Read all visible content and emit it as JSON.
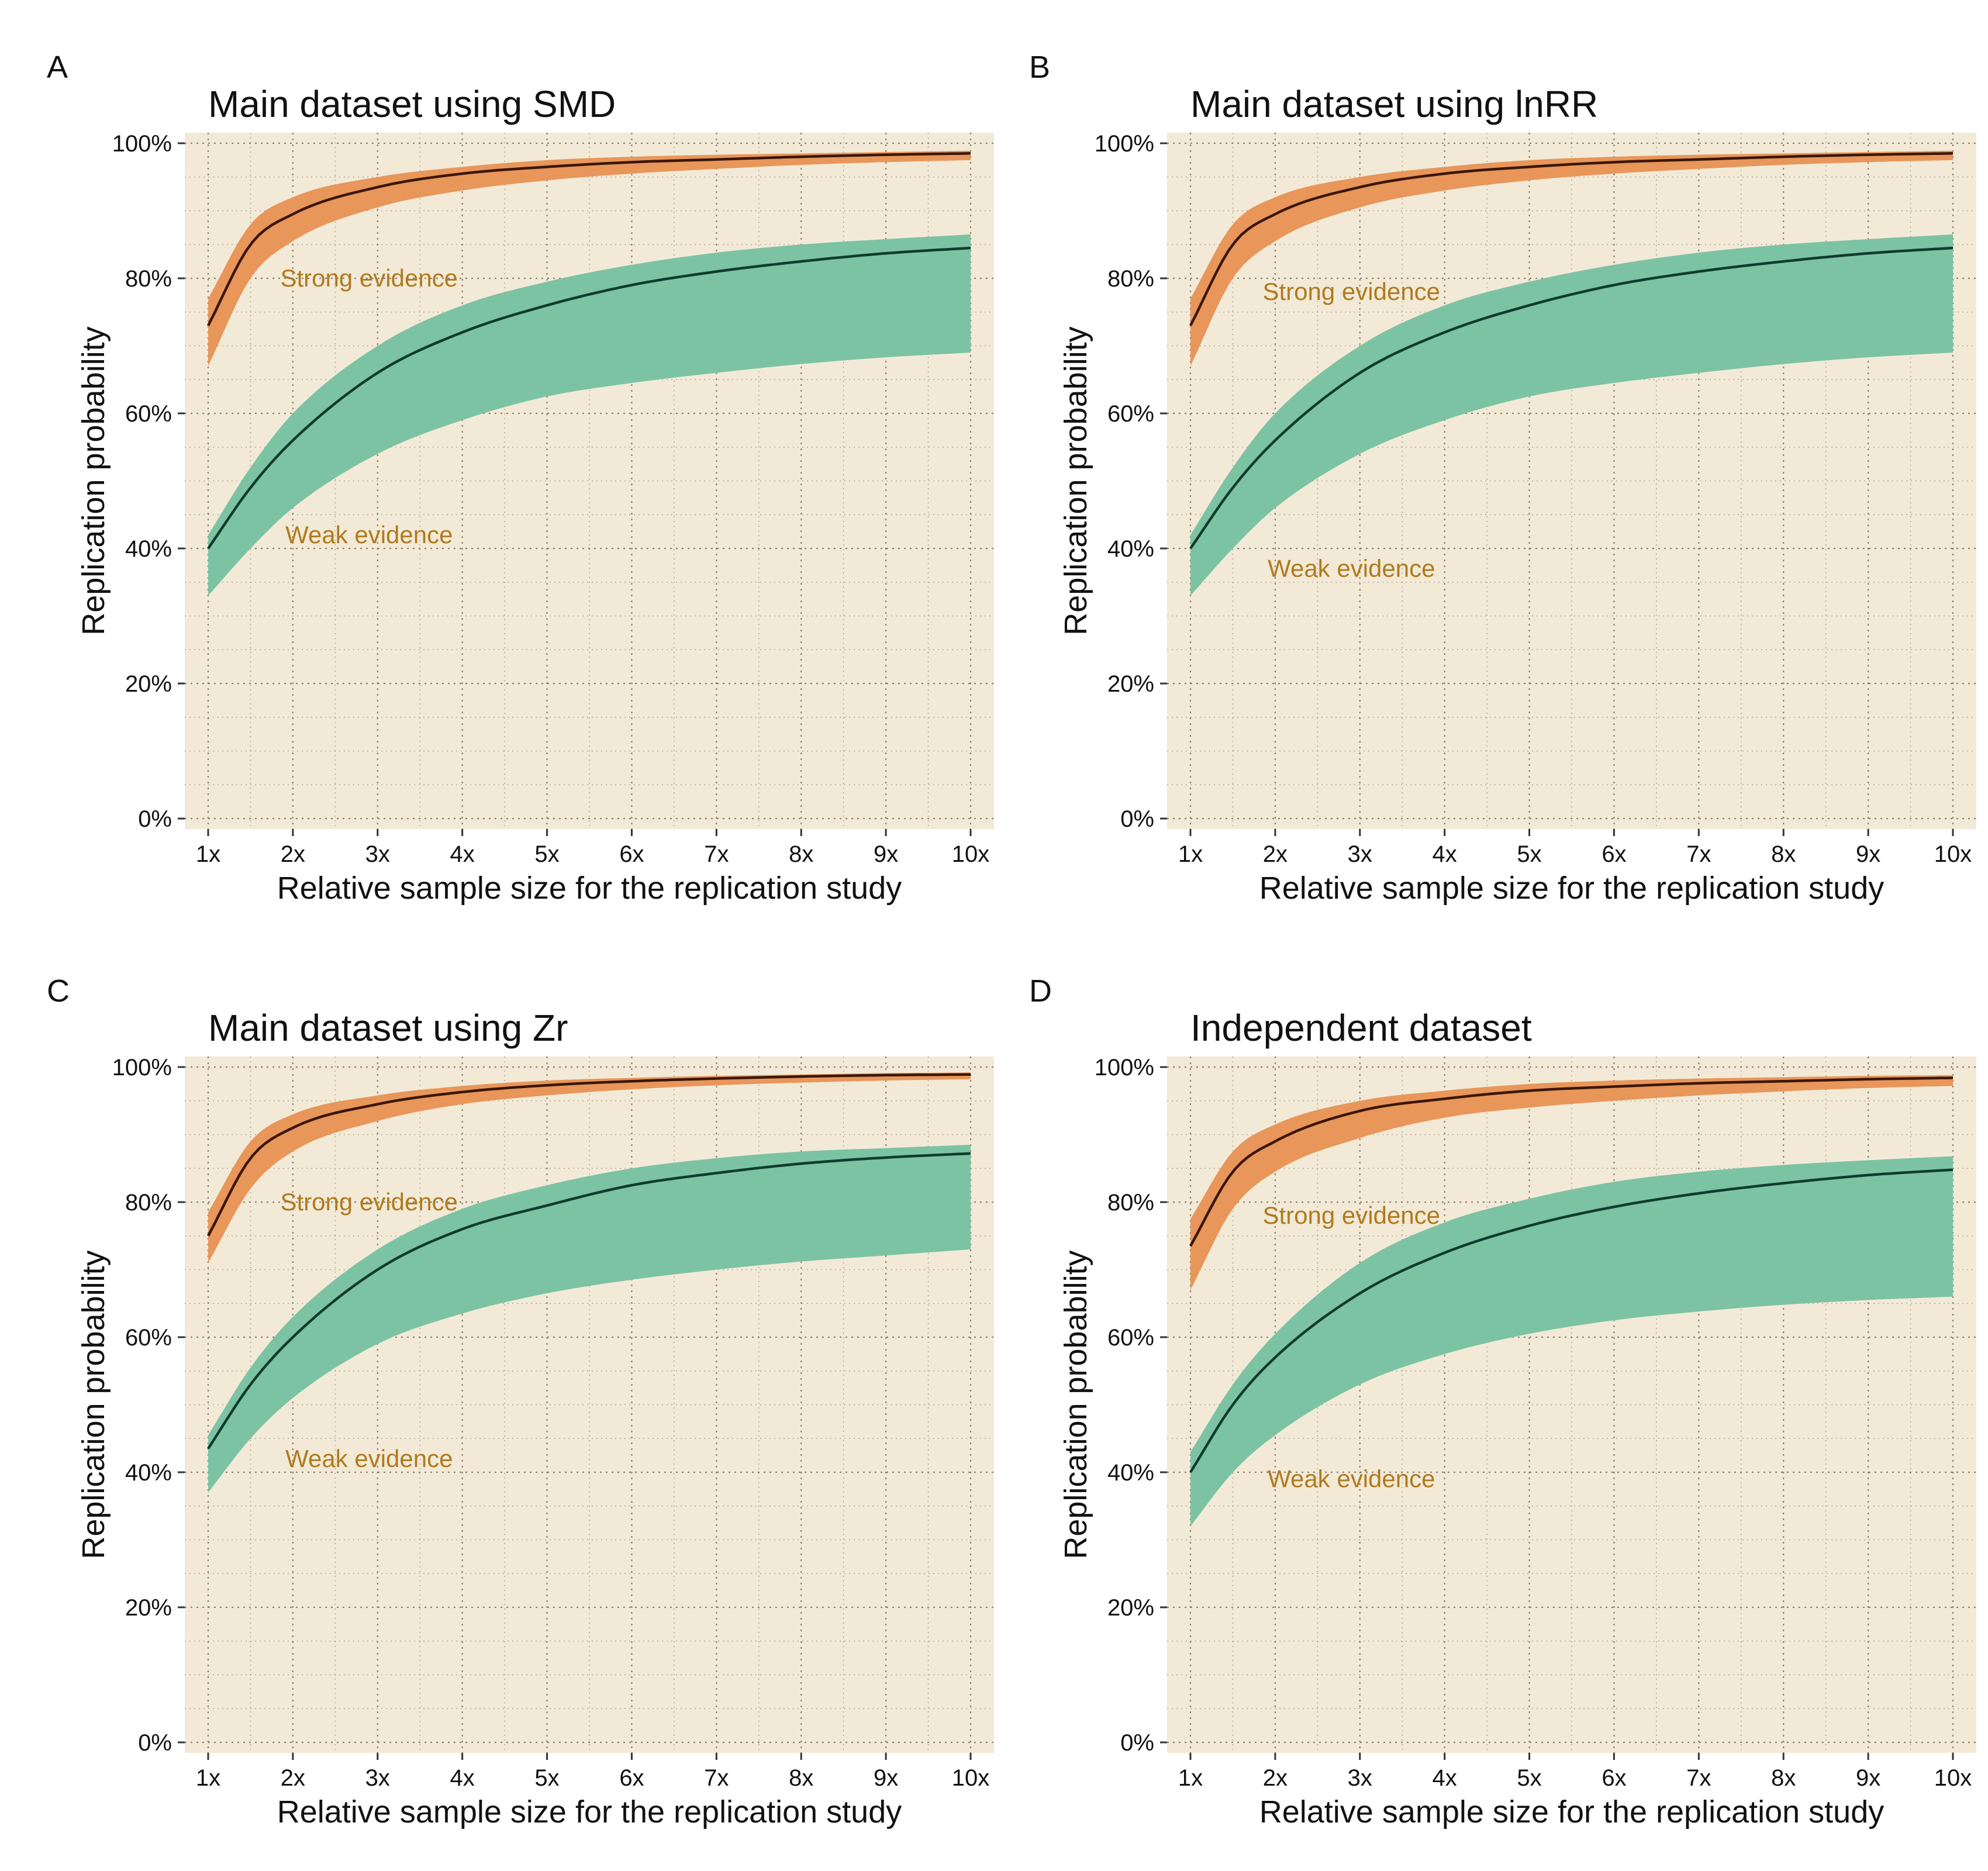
{
  "colors": {
    "panel_background": "#F2EAD7",
    "grid": "#7a7060",
    "strong_band": "#E8965A",
    "strong_line": "#3a1608",
    "weak_band": "#7CC3A3",
    "weak_line": "#0f3b2c",
    "annotation": "#B07A1E"
  },
  "chart_data": [
    {
      "type": "area",
      "letter": "A",
      "title": "Main dataset using SMD",
      "xlabel": "Relative sample size for the replication study",
      "ylabel": "Replication probability",
      "xlim": [
        1,
        10
      ],
      "ylim": [
        0,
        100
      ],
      "x_ticks": [
        "1x",
        "2x",
        "3x",
        "4x",
        "5x",
        "6x",
        "7x",
        "8x",
        "9x",
        "10x"
      ],
      "y_ticks": [
        "0%",
        "20%",
        "40%",
        "60%",
        "80%",
        "100%"
      ],
      "grid": "dotted",
      "annotations": [
        {
          "text": "Strong evidence",
          "x": 2.9,
          "y": 80
        },
        {
          "text": "Weak evidence",
          "x": 2.9,
          "y": 42
        }
      ],
      "series": [
        {
          "name": "Strong evidence",
          "x": [
            1,
            1.5,
            2,
            3,
            4,
            5,
            6,
            7,
            8,
            9,
            10
          ],
          "mean": [
            73,
            85,
            89.5,
            93.5,
            95.5,
            96.5,
            97.2,
            97.6,
            98,
            98.3,
            98.5
          ],
          "lower": [
            67,
            80,
            85.5,
            90.5,
            93,
            94.5,
            95.5,
            96.2,
            96.8,
            97.2,
            97.5
          ],
          "upper": [
            77,
            88,
            92,
            95,
            96.5,
            97.5,
            98,
            98.3,
            98.5,
            98.7,
            98.9
          ]
        },
        {
          "name": "Weak evidence",
          "x": [
            1,
            1.5,
            2,
            3,
            4,
            5,
            6,
            7,
            8,
            9,
            10
          ],
          "mean": [
            40,
            49,
            56,
            66,
            72,
            76,
            79,
            81,
            82.5,
            83.7,
            84.5
          ],
          "lower": [
            33,
            40,
            46,
            54,
            59,
            62.5,
            64.5,
            66,
            67.3,
            68.3,
            69
          ],
          "upper": [
            42,
            52,
            60,
            70,
            76,
            79.5,
            82,
            83.8,
            85,
            85.8,
            86.5
          ]
        }
      ]
    },
    {
      "type": "area",
      "letter": "B",
      "title": "Main dataset using lnRR",
      "xlabel": "Relative sample size for the replication study",
      "ylabel": "Replication probability",
      "xlim": [
        1,
        10
      ],
      "ylim": [
        0,
        100
      ],
      "x_ticks": [
        "1x",
        "2x",
        "3x",
        "4x",
        "5x",
        "6x",
        "7x",
        "8x",
        "9x",
        "10x"
      ],
      "y_ticks": [
        "0%",
        "20%",
        "40%",
        "60%",
        "80%",
        "100%"
      ],
      "grid": "dotted",
      "annotations": [
        {
          "text": "Strong evidence",
          "x": 2.9,
          "y": 78
        },
        {
          "text": "Weak evidence",
          "x": 2.9,
          "y": 37
        }
      ],
      "series": [
        {
          "name": "Strong evidence",
          "x": [
            1,
            1.5,
            2,
            3,
            4,
            5,
            6,
            7,
            8,
            9,
            10
          ],
          "mean": [
            73,
            85,
            89.5,
            93.5,
            95.5,
            96.5,
            97.2,
            97.6,
            98,
            98.3,
            98.5
          ],
          "lower": [
            67,
            80,
            85.5,
            90.5,
            93,
            94.5,
            95.5,
            96.2,
            96.8,
            97.2,
            97.5
          ],
          "upper": [
            77,
            88,
            92,
            95,
            96.5,
            97.5,
            98,
            98.3,
            98.5,
            98.7,
            98.9
          ]
        },
        {
          "name": "Weak evidence",
          "x": [
            1,
            1.5,
            2,
            3,
            4,
            5,
            6,
            7,
            8,
            9,
            10
          ],
          "mean": [
            40,
            49,
            56,
            66,
            72,
            76,
            79,
            81,
            82.5,
            83.7,
            84.5
          ],
          "lower": [
            33,
            40,
            46,
            54,
            59,
            62.5,
            64.5,
            66,
            67.3,
            68.3,
            69
          ],
          "upper": [
            42,
            52,
            60,
            70,
            76,
            79.5,
            82,
            83.8,
            85,
            85.8,
            86.5
          ]
        }
      ]
    },
    {
      "type": "area",
      "letter": "C",
      "title": "Main dataset using Zr",
      "xlabel": "Relative sample size for the replication study",
      "ylabel": "Replication probability",
      "xlim": [
        1,
        10
      ],
      "ylim": [
        0,
        100
      ],
      "x_ticks": [
        "1x",
        "2x",
        "3x",
        "4x",
        "5x",
        "6x",
        "7x",
        "8x",
        "9x",
        "10x"
      ],
      "y_ticks": [
        "0%",
        "20%",
        "40%",
        "60%",
        "80%",
        "100%"
      ],
      "grid": "dotted",
      "annotations": [
        {
          "text": "Strong evidence",
          "x": 2.9,
          "y": 80
        },
        {
          "text": "Weak evidence",
          "x": 2.9,
          "y": 42
        }
      ],
      "series": [
        {
          "name": "Strong evidence",
          "x": [
            1,
            1.5,
            2,
            3,
            4,
            5,
            6,
            7,
            8,
            9,
            10
          ],
          "mean": [
            75,
            86.5,
            91,
            94.5,
            96.3,
            97.3,
            97.9,
            98.3,
            98.6,
            98.8,
            98.9
          ],
          "lower": [
            71,
            82,
            87.5,
            92,
            94.5,
            95.8,
            96.7,
            97.3,
            97.7,
            98,
            98.2
          ],
          "upper": [
            78.5,
            89,
            93,
            95.8,
            97.2,
            98,
            98.4,
            98.7,
            98.9,
            99.1,
            99.2
          ]
        },
        {
          "name": "Weak evidence",
          "x": [
            1,
            1.5,
            2,
            3,
            4,
            5,
            6,
            7,
            8,
            9,
            10
          ],
          "mean": [
            43.5,
            53,
            60,
            70,
            76,
            79.5,
            82.5,
            84.3,
            85.7,
            86.6,
            87.2
          ],
          "lower": [
            37,
            45,
            51,
            59,
            63.5,
            66.5,
            68.5,
            70,
            71.2,
            72.1,
            73
          ],
          "upper": [
            45.5,
            55.5,
            63,
            73,
            79,
            82.5,
            85,
            86.5,
            87.5,
            88,
            88.5
          ]
        }
      ]
    },
    {
      "type": "area",
      "letter": "D",
      "title": "Independent dataset",
      "xlabel": "Relative sample size for the replication study",
      "ylabel": "Replication probability",
      "xlim": [
        1,
        10
      ],
      "ylim": [
        0,
        100
      ],
      "x_ticks": [
        "1x",
        "2x",
        "3x",
        "4x",
        "5x",
        "6x",
        "7x",
        "8x",
        "9x",
        "10x"
      ],
      "y_ticks": [
        "0%",
        "20%",
        "40%",
        "60%",
        "80%",
        "100%"
      ],
      "grid": "dotted",
      "annotations": [
        {
          "text": "Strong evidence",
          "x": 2.9,
          "y": 78
        },
        {
          "text": "Weak evidence",
          "x": 2.9,
          "y": 39
        }
      ],
      "series": [
        {
          "name": "Strong evidence",
          "x": [
            1,
            1.5,
            2,
            3,
            4,
            5,
            6,
            7,
            8,
            9,
            10
          ],
          "mean": [
            73.5,
            84.5,
            89,
            93.5,
            95.3,
            96.5,
            97.1,
            97.6,
            97.9,
            98.2,
            98.4
          ],
          "lower": [
            67,
            79,
            84.5,
            89.5,
            92.5,
            94,
            95,
            95.8,
            96.4,
            96.9,
            97.2
          ],
          "upper": [
            77.5,
            87.5,
            91.5,
            95,
            96.5,
            97.5,
            98,
            98.3,
            98.5,
            98.7,
            98.8
          ]
        },
        {
          "name": "Weak evidence",
          "x": [
            1,
            1.5,
            2,
            3,
            4,
            5,
            6,
            7,
            8,
            9,
            10
          ],
          "mean": [
            40,
            50,
            57,
            66.5,
            72.5,
            76.5,
            79.3,
            81.3,
            82.8,
            84,
            84.8
          ],
          "lower": [
            32,
            40,
            45.5,
            53,
            57.5,
            60.5,
            62.5,
            63.8,
            64.8,
            65.5,
            66
          ],
          "upper": [
            43,
            53,
            60.5,
            71,
            77,
            80.5,
            83,
            84.5,
            85.5,
            86.2,
            86.8
          ]
        }
      ]
    }
  ]
}
